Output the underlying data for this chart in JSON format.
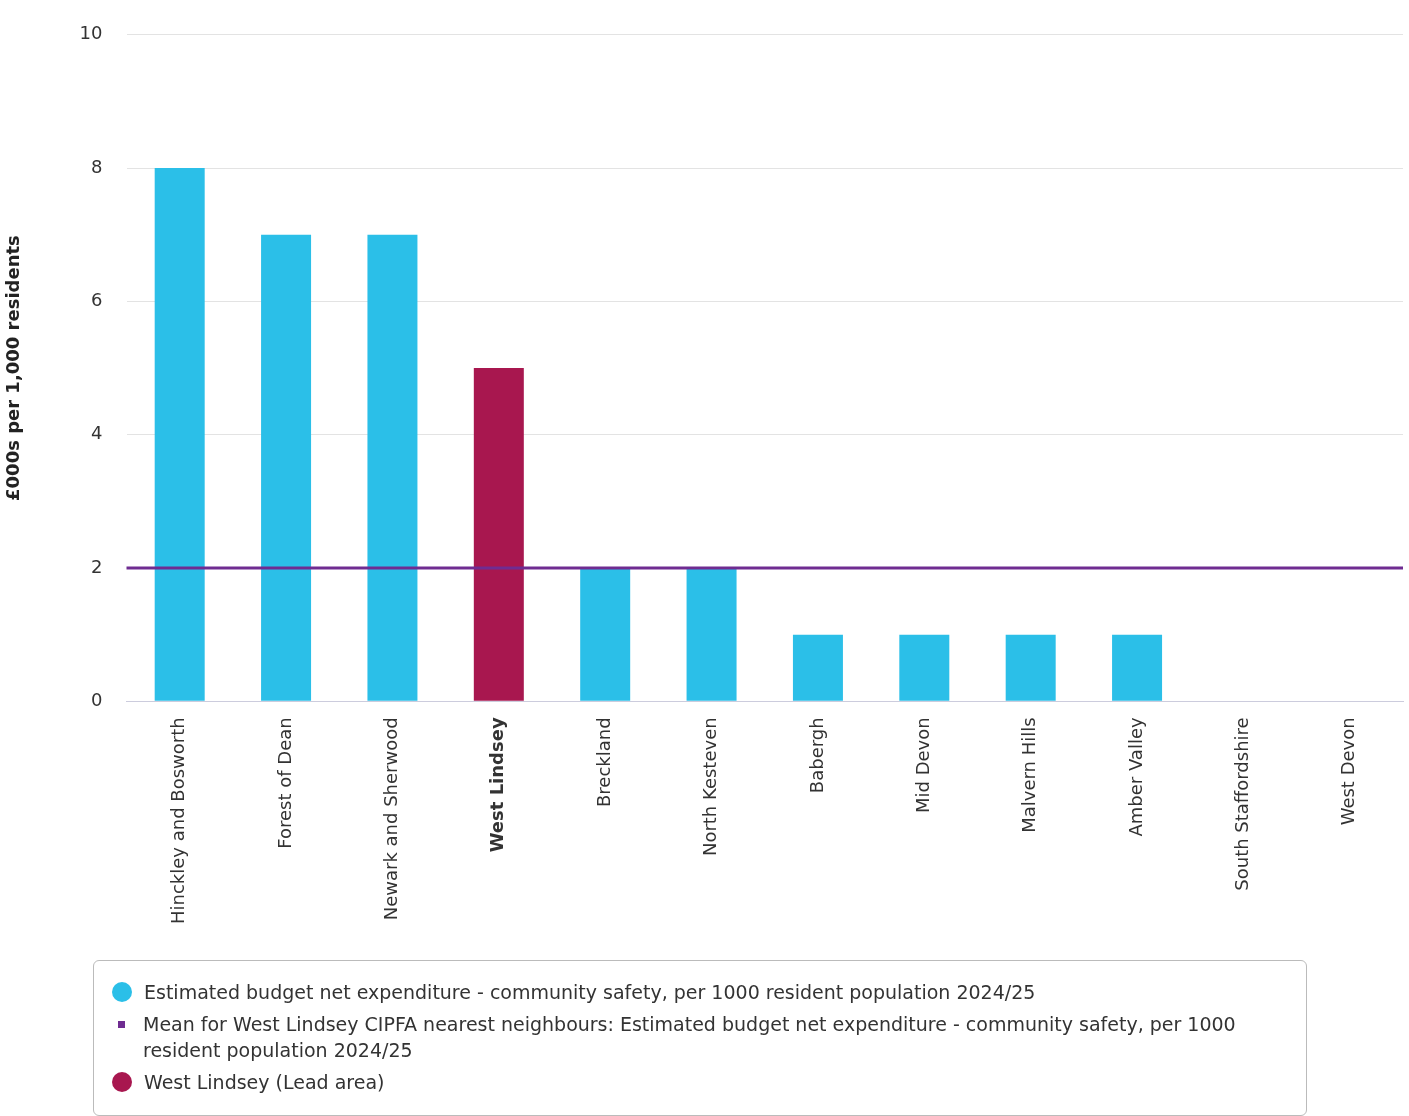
{
  "chart_data": {
    "type": "bar",
    "ylabel": "£000s per 1,000 residents",
    "categories": [
      "Hinckley and Bosworth",
      "Forest of Dean",
      "Newark and Sherwood",
      "West Lindsey",
      "Breckland",
      "North Kesteven",
      "Babergh",
      "Mid Devon",
      "Malvern Hills",
      "Amber Valley",
      "South Staffordshire",
      "West Devon"
    ],
    "stacked": true,
    "series": [
      {
        "name": "Estimated budget net expenditure - community safety, per 1000 resident population 2024/25",
        "color": "#2bbfe8",
        "values": [
          8,
          7,
          7,
          null,
          2,
          2,
          1,
          1,
          1,
          1,
          0,
          0
        ]
      },
      {
        "name": "West Lindsey (Lead area)",
        "color": "#a8174f",
        "values": [
          null,
          null,
          null,
          5,
          null,
          null,
          null,
          null,
          null,
          null,
          null,
          null
        ]
      }
    ],
    "ref_lines": [
      {
        "axis": "y",
        "value": 2,
        "label": "Mean for West Lindsey CIPFA nearest neighbours: Estimated budget net expenditure - community safety, per 1000 resident population 2024/25",
        "color": "#6f2c91"
      }
    ],
    "ylim": [
      0,
      10
    ],
    "yticks": [
      0,
      2,
      4,
      6,
      8,
      10
    ],
    "grid": "y",
    "legend": "bottom"
  }
}
